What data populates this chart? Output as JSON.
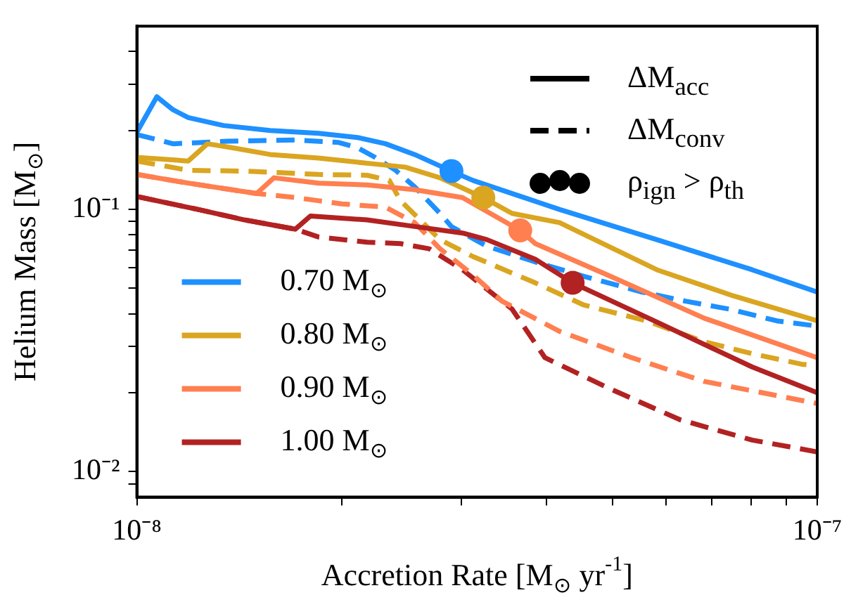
{
  "chart_data": {
    "type": "line",
    "xlabel": "Accretion Rate [M$_{⊙}$ yr$^{-1}$]",
    "ylabel": "Helium Mass [M$_{⊙}$]",
    "log": "xy",
    "xlim": [
      1e-08,
      1e-07
    ],
    "ylim": [
      0.008,
      0.5
    ],
    "xticks": [
      {
        "value": 1e-08,
        "label": "10⁻⁸"
      },
      {
        "value": 2e-08,
        "label": null
      },
      {
        "value": 3e-08,
        "label": null
      },
      {
        "value": 4e-08,
        "label": null
      },
      {
        "value": 5e-08,
        "label": null
      },
      {
        "value": 6e-08,
        "label": null
      },
      {
        "value": 7e-08,
        "label": null
      },
      {
        "value": 8e-08,
        "label": null
      },
      {
        "value": 9e-08,
        "label": null
      },
      {
        "value": 1e-07,
        "label": "10⁻⁷"
      }
    ],
    "yticks": [
      {
        "value": 0.009,
        "label": null
      },
      {
        "value": 0.01,
        "label": "10⁻²"
      },
      {
        "value": 0.02,
        "label": null
      },
      {
        "value": 0.03,
        "label": null
      },
      {
        "value": 0.04,
        "label": null
      },
      {
        "value": 0.05,
        "label": null
      },
      {
        "value": 0.06,
        "label": null
      },
      {
        "value": 0.07,
        "label": null
      },
      {
        "value": 0.08,
        "label": null
      },
      {
        "value": 0.09,
        "label": null
      },
      {
        "value": 0.1,
        "label": "10⁻¹"
      },
      {
        "value": 0.2,
        "label": null
      },
      {
        "value": 0.3,
        "label": null
      },
      {
        "value": 0.4,
        "label": null
      }
    ],
    "legend": "bottom left",
    "annotations": [
      "ΔM$_{acc}$",
      "ΔM$_{conv}$",
      "ρ$_{ign}$ > ρ$_{th}$"
    ],
    "series": [
      {
        "name": "0.70 M$_{⊙}$",
        "color": "#1e90ff",
        "line_style": "solid",
        "x": [
          1e-08,
          1.07e-08,
          1.13e-08,
          1.19e-08,
          1.34e-08,
          1.57e-08,
          1.85e-08,
          2.11e-08,
          2.32e-08,
          2.56e-08,
          2.9e-08,
          3.12e-08,
          4.18e-08,
          5.81e-08,
          8.02e-08,
          1e-07
        ],
        "values": [
          0.197,
          0.269,
          0.24,
          0.224,
          0.209,
          0.2,
          0.195,
          0.188,
          0.178,
          0.162,
          0.14,
          0.129,
          0.1,
          0.0767,
          0.0589,
          0.0484
        ]
      },
      {
        "name": "0.80 M$_{⊙}$",
        "color": "#daa520",
        "line_style": "solid",
        "x": [
          1e-08,
          1.19e-08,
          1.27e-08,
          1.38e-08,
          1.57e-08,
          1.85e-08,
          2.18e-08,
          2.48e-08,
          2.79e-08,
          3.23e-08,
          3.56e-08,
          4.18e-08,
          5.81e-08,
          7.53e-08,
          1e-07
        ],
        "values": [
          0.158,
          0.153,
          0.178,
          0.172,
          0.162,
          0.157,
          0.15,
          0.145,
          0.132,
          0.111,
          0.0966,
          0.0891,
          0.0589,
          0.0468,
          0.0376
        ]
      },
      {
        "name": "0.90 M$_{⊙}$",
        "color": "#ff7f50",
        "line_style": "solid",
        "x": [
          1e-08,
          1.19e-08,
          1.5e-08,
          1.59e-08,
          1.85e-08,
          2.18e-08,
          2.56e-08,
          3.01e-08,
          3.66e-08,
          3.85e-08,
          4.92e-08,
          6.82e-08,
          1e-07
        ],
        "values": [
          0.136,
          0.126,
          0.115,
          0.132,
          0.126,
          0.124,
          0.119,
          0.111,
          0.0832,
          0.0741,
          0.0562,
          0.0385,
          0.0272
        ]
      },
      {
        "name": "1.00 M$_{⊙}$",
        "color": "#b22222",
        "line_style": "solid",
        "x": [
          1e-08,
          1.23e-08,
          1.44e-08,
          1.71e-08,
          1.8e-08,
          2.18e-08,
          2.56e-08,
          3.01e-08,
          3.27e-08,
          3.85e-08,
          4.37e-08,
          5.81e-08,
          8.02e-08,
          1e-07
        ],
        "values": [
          0.112,
          0.1,
          0.0912,
          0.0841,
          0.0944,
          0.0912,
          0.0861,
          0.0813,
          0.0767,
          0.0646,
          0.0525,
          0.0372,
          0.0251,
          0.02
        ]
      },
      {
        "color": "#1e90ff",
        "line_style": "dashed",
        "x": [
          1e-08,
          1.13e-08,
          1.36e-08,
          1.71e-08,
          1.98e-08,
          2.11e-08,
          2.24e-08,
          2.4e-08,
          2.56e-08,
          2.79e-08,
          2.9e-08,
          3.27e-08,
          3.85e-08,
          4.54e-08,
          5.53e-08,
          6.4e-08,
          7.42e-08,
          8.72e-08,
          1e-07
        ],
        "values": [
          0.193,
          0.178,
          0.182,
          0.184,
          0.18,
          0.172,
          0.158,
          0.141,
          0.122,
          0.0966,
          0.086,
          0.0724,
          0.0631,
          0.0556,
          0.0484,
          0.0447,
          0.0417,
          0.0376,
          0.0359
        ]
      },
      {
        "color": "#daa520",
        "line_style": "dashed",
        "x": [
          1e-08,
          1.19e-08,
          1.44e-08,
          1.85e-08,
          2.18e-08,
          2.35e-08,
          2.44e-08,
          2.79e-08,
          3.12e-08,
          3.85e-08,
          4.54e-08,
          5.61e-08,
          6.82e-08,
          8.02e-08,
          9.48e-08,
          1e-07
        ],
        "values": [
          0.153,
          0.141,
          0.14,
          0.136,
          0.135,
          0.129,
          0.108,
          0.0767,
          0.0661,
          0.0525,
          0.0432,
          0.0376,
          0.0313,
          0.0282,
          0.0257,
          0.0254
        ]
      },
      {
        "color": "#ff7f50",
        "line_style": "dashed",
        "x": [
          1e-08,
          1.19e-08,
          1.5e-08,
          1.71e-08,
          2e-08,
          2.32e-08,
          2.56e-08,
          2.79e-08,
          3.12e-08,
          3.44e-08,
          4.18e-08,
          5.34e-08,
          6.82e-08,
          1e-07
        ],
        "values": [
          0.136,
          0.126,
          0.115,
          0.111,
          0.105,
          0.102,
          0.0891,
          0.0708,
          0.0562,
          0.0447,
          0.0343,
          0.0272,
          0.0221,
          0.0182
        ]
      },
      {
        "color": "#b22222",
        "line_style": "dashed",
        "x": [
          1e-08,
          1.23e-08,
          1.44e-08,
          1.71e-08,
          1.85e-08,
          2.18e-08,
          2.44e-08,
          2.69e-08,
          3.01e-08,
          3.56e-08,
          3.98e-08,
          4.92e-08,
          6.28e-08,
          8.02e-08,
          1e-07
        ],
        "values": [
          0.112,
          0.1,
          0.0912,
          0.0841,
          0.0785,
          0.075,
          0.0741,
          0.0708,
          0.0589,
          0.0417,
          0.0272,
          0.0209,
          0.0158,
          0.0132,
          0.0119
        ]
      },
      {
        "type": "scatter",
        "marker": "circle",
        "x": [
          2.9e-08,
          3.23e-08,
          3.66e-08,
          4.37e-08
        ],
        "values": [
          0.14,
          0.111,
          0.0832,
          0.0525
        ],
        "colors": [
          "#1e90ff",
          "#daa520",
          "#ff7f50",
          "#b22222"
        ]
      }
    ]
  }
}
